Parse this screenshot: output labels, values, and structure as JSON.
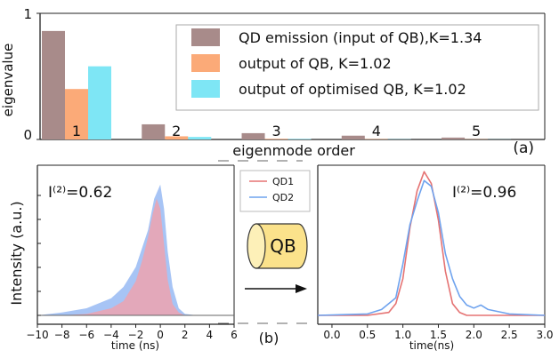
{
  "chart_data": [
    {
      "panel": "(a)",
      "type": "bar",
      "xlabel": "eigenmode order",
      "ylabel": "eigenvalue",
      "ylim": [
        0,
        1
      ],
      "yticks": [
        "0",
        "1"
      ],
      "categories": [
        "1",
        "2",
        "3",
        "4",
        "5"
      ],
      "series": [
        {
          "name": "QD emission (input of QB),K=1.34",
          "color": "#a88b8a",
          "values": [
            0.86,
            0.12,
            0.05,
            0.03,
            0.015
          ]
        },
        {
          "name": "output of QB, K=1.02",
          "color": "#fbaa78",
          "values": [
            0.4,
            0.025,
            0.005,
            0.003,
            0.002
          ]
        },
        {
          "name": "output of optimised QB, K=1.02",
          "color": "#7ee6f5",
          "values": [
            0.58,
            0.02,
            0.004,
            0.002,
            0.001
          ]
        }
      ],
      "legend": "top-right",
      "grid": false
    },
    {
      "panel": "(b) left",
      "type": "area",
      "xlabel": "time (ns)",
      "ylabel": "Intensity (a.u.)",
      "xlim": [
        -10,
        6
      ],
      "xticks": [
        "−10",
        "−8",
        "−6",
        "−4",
        "−2",
        "0",
        "2",
        "4",
        "6"
      ],
      "annotation": "I⁽²⁾=0.62",
      "series": [
        {
          "name": "",
          "color": "#a7c4f5",
          "x": [
            -10,
            -8,
            -6,
            -4,
            -3,
            -2,
            -1,
            -0.5,
            0,
            0.3,
            0.6,
            1,
            1.5,
            2,
            3,
            4
          ],
          "values": [
            0,
            0.02,
            0.05,
            0.12,
            0.2,
            0.34,
            0.6,
            0.82,
            0.92,
            0.75,
            0.45,
            0.2,
            0.05,
            0.01,
            0,
            0
          ]
        },
        {
          "name": "",
          "color": "#e6a6b6",
          "x": [
            -8,
            -6,
            -4,
            -3,
            -2,
            -1.5,
            -1,
            -0.6,
            -0.3,
            0,
            0.3,
            0.6,
            1,
            1.5,
            2,
            3
          ],
          "values": [
            0,
            0.01,
            0.05,
            0.1,
            0.24,
            0.38,
            0.55,
            0.72,
            0.82,
            0.75,
            0.5,
            0.25,
            0.08,
            0.02,
            0,
            0
          ]
        }
      ]
    },
    {
      "panel": "(b) right",
      "type": "line",
      "xlabel": "time(ns)",
      "xlim": [
        -0.2,
        3.0
      ],
      "xticks": [
        "0.0",
        "0.5",
        "1.0",
        "1.5",
        "2.0",
        "2.5",
        "3.0"
      ],
      "annotation": "I⁽²⁾=0.96",
      "series": [
        {
          "name": "QD1",
          "color": "#e57373",
          "x": [
            -0.2,
            0.5,
            0.8,
            0.9,
            1.0,
            1.1,
            1.2,
            1.3,
            1.4,
            1.5,
            1.6,
            1.7,
            1.8,
            1.9,
            2.0,
            2.5,
            3.0
          ],
          "values": [
            0,
            0,
            0.02,
            0.08,
            0.25,
            0.6,
            0.85,
            0.98,
            0.9,
            0.65,
            0.3,
            0.08,
            0.02,
            0,
            0,
            0,
            0
          ]
        },
        {
          "name": "QD2",
          "color": "#6fa3ee",
          "x": [
            -0.2,
            0.5,
            0.7,
            0.9,
            1.0,
            1.1,
            1.2,
            1.3,
            1.4,
            1.5,
            1.6,
            1.7,
            1.8,
            1.9,
            2.0,
            2.1,
            2.2,
            2.5,
            3.0
          ],
          "values": [
            0,
            0.01,
            0.04,
            0.12,
            0.35,
            0.62,
            0.78,
            0.92,
            0.88,
            0.7,
            0.42,
            0.25,
            0.13,
            0.07,
            0.05,
            0.07,
            0.04,
            0.01,
            0
          ]
        }
      ]
    }
  ],
  "panel_labels": {
    "a": "(a)",
    "b": "(b)"
  },
  "device_label": "QB"
}
